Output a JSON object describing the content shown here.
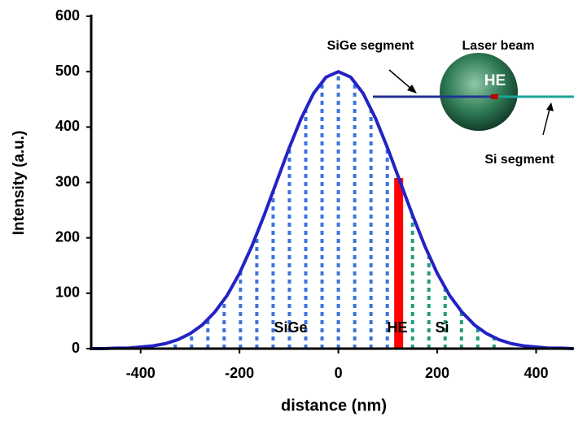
{
  "chart_data": {
    "type": "line",
    "xlabel": "distance (nm)",
    "ylabel": "Intensity (a.u.)",
    "xlim": [
      -500,
      475
    ],
    "ylim": [
      0,
      600
    ],
    "xticks": [
      -400,
      -200,
      0,
      200,
      400
    ],
    "yticks": [
      0,
      100,
      200,
      300,
      400,
      500,
      600
    ],
    "grid": false,
    "series": [
      {
        "style": "line",
        "color": "#2323c4",
        "x": [
          -500,
          -475,
          -450,
          -425,
          -400,
          -375,
          -350,
          -325,
          -300,
          -275,
          -250,
          -225,
          -200,
          -175,
          -150,
          -125,
          -100,
          -75,
          -50,
          -25,
          0,
          25,
          50,
          75,
          100,
          125,
          150,
          175,
          200,
          225,
          250,
          275,
          300,
          325,
          350,
          375,
          400,
          425,
          450,
          475
        ],
        "values": [
          0,
          0,
          1,
          1,
          3,
          5,
          9,
          16,
          27,
          43,
          66,
          96,
          136,
          185,
          241,
          301,
          361,
          416,
          461,
          490,
          500,
          490,
          461,
          416,
          361,
          301,
          241,
          185,
          136,
          96,
          66,
          43,
          27,
          16,
          9,
          5,
          3,
          1,
          1,
          0
        ]
      },
      {
        "style": "dashed",
        "color": "#3d74dc",
        "x": [
          -330,
          -297,
          -264,
          -231,
          -198,
          -165,
          -132,
          -99,
          -66,
          -33,
          0,
          33,
          66,
          99
        ],
        "values": [
          14,
          28,
          52,
          88,
          140,
          206,
          284,
          364,
          434,
          483,
          500,
          483,
          434,
          364
        ]
      },
      {
        "style": "solid",
        "color": "#ff0000",
        "x": [
          122
        ],
        "values": [
          308
        ]
      },
      {
        "style": "dashed",
        "color": "#1f9c80",
        "x": [
          150,
          183,
          216,
          249,
          282,
          315
        ],
        "values": [
          241,
          168,
          110,
          67,
          38,
          20
        ]
      }
    ],
    "annotations": [
      "SiGe",
      "HE",
      "Si"
    ],
    "inset": {
      "left_label": "SiGe segment",
      "beam_label": "Laser beam",
      "spot_label": "HE",
      "right_label": "Si segment"
    }
  }
}
